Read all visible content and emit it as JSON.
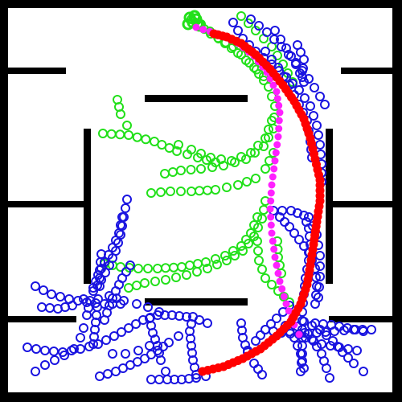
{
  "colors": {
    "background": "#000000",
    "arena": "#ffffff",
    "wall": "#000000",
    "trajectory_green": "#22e01a",
    "trajectory_blue": "#1a14e0",
    "path_red": "#ff0000",
    "path_magenta": "#ff20ff"
  }
}
